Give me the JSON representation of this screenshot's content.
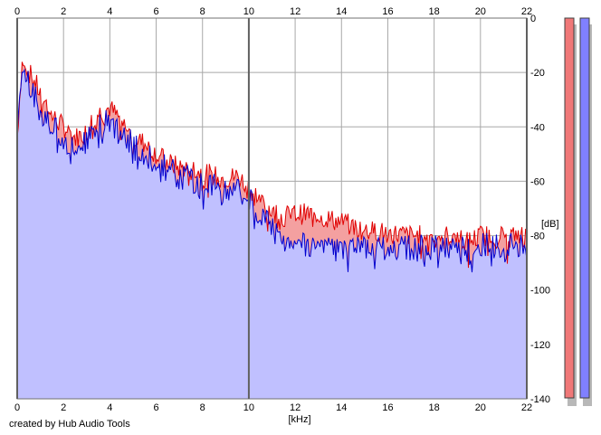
{
  "footer": {
    "credit": "created by Hub Audio Tools"
  },
  "chart_data": {
    "type": "area",
    "xlabel": "[kHz]",
    "ylabel": "[dB]",
    "xlim": [
      0,
      22
    ],
    "ylim": [
      -140,
      0
    ],
    "x_ticks": [
      0,
      2,
      4,
      6,
      8,
      10,
      12,
      14,
      16,
      18,
      20,
      22
    ],
    "y_ticks": [
      0,
      -20,
      -40,
      -60,
      -80,
      -100,
      -120,
      -140
    ],
    "grid": true,
    "x": [
      0,
      0.1,
      0.2,
      0.3,
      0.5,
      0.8,
      1.0,
      1.5,
      2.0,
      2.5,
      3.0,
      3.2,
      3.5,
      4.0,
      4.5,
      5.0,
      5.5,
      6.0,
      6.5,
      7.0,
      7.5,
      8.0,
      8.5,
      9.0,
      9.5,
      10.0,
      10.5,
      11.0,
      11.5,
      12.0,
      12.5,
      13.0,
      13.5,
      14.0,
      15.0,
      16.0,
      17.0,
      18.0,
      19.0,
      19.5,
      20.0,
      20.5,
      21.0,
      21.5,
      22.0
    ],
    "series": [
      {
        "color": "#e00000",
        "fill": "#f4a0a0",
        "values": [
          -44,
          -30,
          -17,
          -15,
          -20,
          -24,
          -28,
          -36,
          -40,
          -44,
          -42,
          -38,
          -35,
          -33,
          -38,
          -44,
          -46,
          -50,
          -53,
          -55,
          -55,
          -57,
          -58,
          -59,
          -58,
          -62,
          -67,
          -71,
          -73,
          -72,
          -72,
          -72,
          -74,
          -75,
          -78,
          -79,
          -80,
          -80,
          -80,
          -82,
          -80,
          -80,
          -80,
          -80,
          -80
        ]
      },
      {
        "color": "#0000d0",
        "fill": "#c0c0ff",
        "values": [
          -45,
          -32,
          -20,
          -18,
          -25,
          -30,
          -35,
          -40,
          -44,
          -47,
          -46,
          -43,
          -40,
          -38,
          -42,
          -47,
          -50,
          -53,
          -56,
          -58,
          -59,
          -61,
          -62,
          -63,
          -63,
          -67,
          -72,
          -78,
          -81,
          -83,
          -83,
          -83,
          -84,
          -85,
          -85,
          -84,
          -85,
          -84,
          -84,
          -86,
          -84,
          -84,
          -84,
          -84,
          -84
        ]
      }
    ]
  },
  "meters": {
    "left_color": "#f07878",
    "right_color": "#8080ff"
  }
}
